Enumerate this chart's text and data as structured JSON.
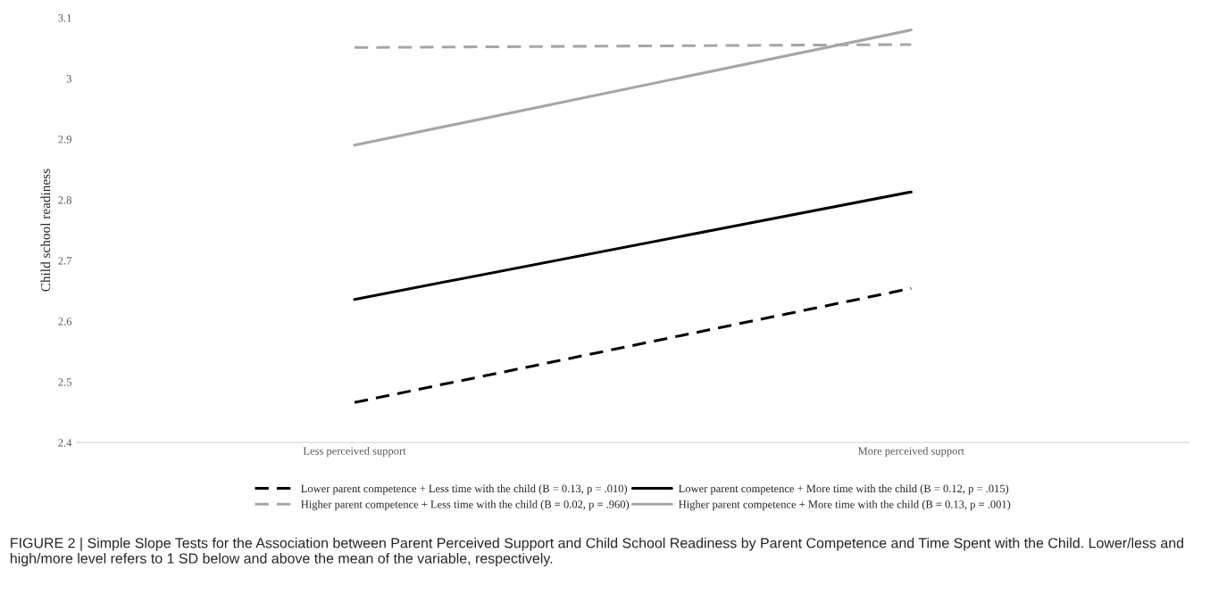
{
  "chart_data": {
    "type": "line",
    "ylabel": "Child school readiness",
    "categories": [
      "Less perceived support",
      "More perceived support"
    ],
    "ylim": [
      2.4,
      3.1
    ],
    "yticks": [
      2.4,
      2.5,
      2.6,
      2.7,
      2.8,
      2.9,
      3,
      3.1
    ],
    "grid": false,
    "legend": "bottom",
    "marker": "none",
    "series": [
      {
        "name": "Lower parent competence + Less time with the child (B = 0.13, p = .010)",
        "color": "#000000",
        "line_style": "dashed",
        "values": [
          2.466,
          2.654
        ]
      },
      {
        "name": "Lower parent competence + More time with the child (B = 0.12, p = .015)",
        "color": "#000000",
        "line_style": "solid",
        "values": [
          2.636,
          2.813
        ]
      },
      {
        "name": "Higher parent competence + Less time with the child (B = 0.02, p = .960)",
        "color": "#a6a6a6",
        "line_style": "dashed",
        "values": [
          3.051,
          3.056
        ]
      },
      {
        "name": "Higher parent competence + More time with the child (B = 0.13, p = .001)",
        "color": "#a6a6a6",
        "line_style": "solid",
        "values": [
          2.89,
          3.08
        ]
      }
    ],
    "annotations": [
      "FIGURE 2 | Simple Slope Tests for the Association between Parent Perceived Support and Child School Readiness by Parent Competence and Time Spent with the Child. Lower/less and high/more level refers to 1 SD below and above the mean of the variable, respectively."
    ]
  }
}
